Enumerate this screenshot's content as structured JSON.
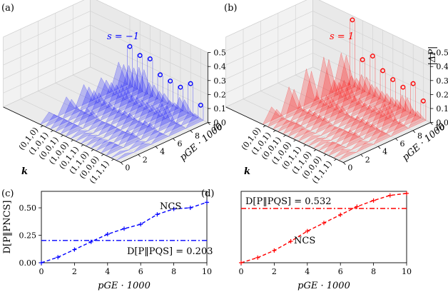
{
  "colors": {
    "blue": "#0000ff",
    "red": "#ff0000",
    "pane": "#f2f2f2",
    "grid": "#d0d0d0"
  },
  "panels": {
    "a": {
      "label": "(a)",
      "s_annotation": "s = −1",
      "color": "#0000ff"
    },
    "b": {
      "label": "(b)",
      "s_annotation": "s = 1",
      "color": "#ff0000"
    },
    "c": {
      "label": "(c)"
    },
    "d": {
      "label": "(d)"
    }
  },
  "axes3d": {
    "k_label": "k",
    "p_label": "pGE · 1000",
    "z_label": "|ΔP|",
    "k_ticks": [
      "(0,1,0)",
      "(1,0,1)",
      "(0,0,1)",
      "(1,0,0)",
      "(0,1,1)",
      "(1,1,0)",
      "(0,0,0)",
      "(1,1,1)"
    ],
    "p_ticks": [
      "0",
      "2",
      "4",
      "6",
      "8",
      "10"
    ],
    "z_ticks": [
      "0.0",
      "0.1",
      "0.2",
      "0.3",
      "0.4",
      "0.5"
    ]
  },
  "chart_data": [
    {
      "type": "line",
      "panel": "c",
      "xlabel": "pGE · 1000",
      "ylabel": "D[P‖PNCS]",
      "xlim": [
        0,
        10
      ],
      "ylim": [
        0,
        0.65
      ],
      "x_ticks": [
        "0",
        "2",
        "4",
        "6",
        "8",
        "10"
      ],
      "y_ticks": [
        "0.00",
        "0.25",
        "0.50"
      ],
      "series": [
        {
          "name": "NCS",
          "color": "#0000ff",
          "x": [
            0,
            1,
            2,
            3,
            4,
            5,
            6,
            7,
            8,
            9,
            10
          ],
          "y": [
            0.0,
            0.05,
            0.12,
            0.19,
            0.26,
            0.31,
            0.35,
            0.44,
            0.49,
            0.5,
            0.55
          ]
        }
      ],
      "reference_line": {
        "value": 0.203,
        "label": "D[P‖PQS] = 0.203"
      },
      "annotation": "NCS"
    },
    {
      "type": "line",
      "panel": "d",
      "xlabel": "pGE · 1000",
      "ylabel": "",
      "xlim": [
        0,
        10
      ],
      "ylim": [
        0,
        0.7
      ],
      "x_ticks": [
        "0",
        "2",
        "4",
        "6",
        "8",
        "10"
      ],
      "series": [
        {
          "name": "NCS",
          "color": "#ff0000",
          "x": [
            0,
            1,
            2,
            3,
            4,
            5,
            6,
            7,
            8,
            9,
            10
          ],
          "y": [
            0.0,
            0.05,
            0.12,
            0.21,
            0.31,
            0.39,
            0.47,
            0.55,
            0.61,
            0.66,
            0.68
          ]
        }
      ],
      "reference_line": {
        "value": 0.532,
        "label": "D[P‖PQS] = 0.532"
      },
      "annotation": "NCS"
    },
    {
      "type": "area",
      "panel": "a",
      "description_series": "|ΔP| vs pGE for each k, s = −1",
      "markers": [
        {
          "k": "(0,1,0)",
          "p": 10,
          "z": 0.28
        },
        {
          "k": "(1,0,1)",
          "p": 10,
          "z": 0.25
        },
        {
          "k": "(0,0,1)",
          "p": 10,
          "z": 0.26
        },
        {
          "k": "(1,0,0)",
          "p": 10,
          "z": 0.18
        },
        {
          "k": "(0,1,1)",
          "p": 10,
          "z": 0.17
        },
        {
          "k": "(1,1,0)",
          "p": 10,
          "z": 0.16
        },
        {
          "k": "(0,0,0)",
          "p": 10,
          "z": 0.22
        },
        {
          "k": "(1,1,1)",
          "p": 10,
          "z": 0.1
        }
      ]
    },
    {
      "type": "area",
      "panel": "b",
      "description_series": "|ΔP| vs pGE for each k, s = 1",
      "markers": [
        {
          "k": "(0,1,0)",
          "p": 10,
          "z": 0.47
        },
        {
          "k": "(1,0,1)",
          "p": 10,
          "z": 0.22
        },
        {
          "k": "(0,0,1)",
          "p": 10,
          "z": 0.28
        },
        {
          "k": "(1,0,0)",
          "p": 10,
          "z": 0.21
        },
        {
          "k": "(0,1,1)",
          "p": 10,
          "z": 0.18
        },
        {
          "k": "(1,1,0)",
          "p": 10,
          "z": 0.16
        },
        {
          "k": "(0,0,0)",
          "p": 10,
          "z": 0.22
        },
        {
          "k": "(1,1,1)",
          "p": 10,
          "z": 0.13
        }
      ]
    }
  ]
}
